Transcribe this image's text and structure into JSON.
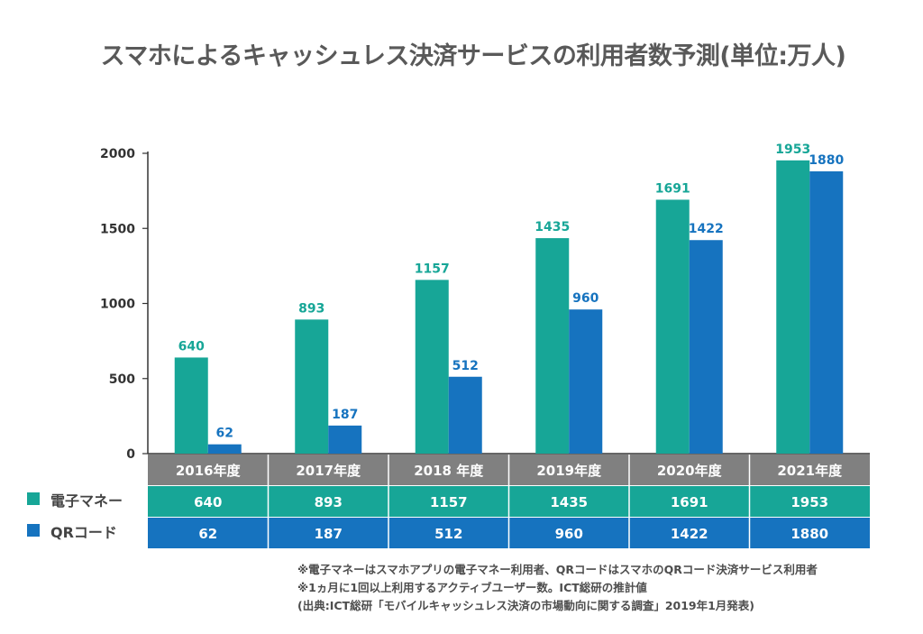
{
  "title": "スマホによるキャッシュレス決済サービスの利用者数予測(単位:万人)",
  "colors": {
    "emoney": "#17a697",
    "qr": "#1673bf",
    "header": "#808080",
    "axis": "#333333",
    "tick_text": "#333333"
  },
  "chart_data": {
    "type": "bar",
    "title": "スマホによるキャッシュレス決済サービスの利用者数予測(単位:万人)",
    "xlabel": "",
    "ylabel": "",
    "ylim": [
      0,
      2000
    ],
    "yticks": [
      "0",
      "500",
      "1000",
      "1500",
      "2000"
    ],
    "categories": [
      "2016年度",
      "2017年度",
      "2018 年度",
      "2019年度",
      "2020年度",
      "2021年度"
    ],
    "series": [
      {
        "name": "電子マネー",
        "values": [
          640,
          893,
          1157,
          1435,
          1691,
          1953
        ]
      },
      {
        "name": "QRコード",
        "values": [
          62,
          187,
          512,
          960,
          1422,
          1880
        ]
      }
    ],
    "grid": false,
    "legend_placement": "bottom-left (data table rows)"
  },
  "table": {
    "rows": [
      {
        "label": "電子マネー",
        "values": [
          "640",
          "893",
          "1157",
          "1435",
          "1691",
          "1953"
        ]
      },
      {
        "label": "QRコード",
        "values": [
          "62",
          "187",
          "512",
          "960",
          "1422",
          "1880"
        ]
      }
    ]
  },
  "notes": [
    "※電子マネーはスマホアプリの電子マネー利用者、QRコードはスマホのQRコード決済サービス利用者",
    "※1ヵ月に1回以上利用するアクティブユーザー数。ICT総研の推計値",
    "(出典:ICT総研「モバイルキャッシュレス決済の市場動向に関する調査」2019年1月発表)"
  ]
}
